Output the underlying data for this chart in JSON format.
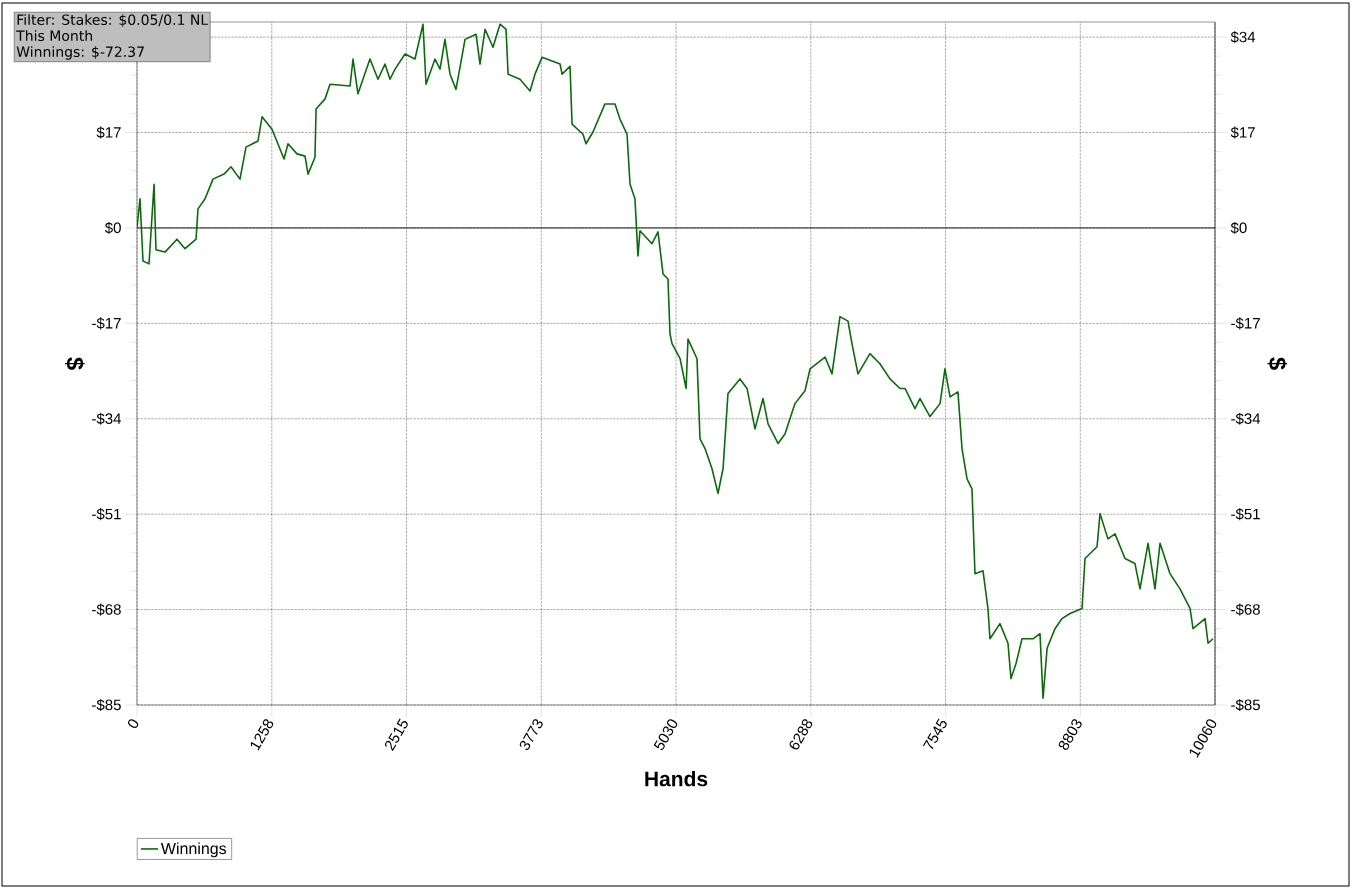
{
  "chart_data": {
    "type": "line",
    "xlabel": "Hands",
    "ylabel": "$",
    "y2label": "$",
    "annotations": [
      "Filter: Stakes: $0.05/0.1 NL",
      "This Month",
      "Winnings: $-72.37"
    ],
    "xlim": [
      0,
      10060
    ],
    "xticks": [
      0,
      1258,
      2515,
      3773,
      5030,
      6288,
      7545,
      8803,
      10060
    ],
    "ylim": [
      -85,
      36.7
    ],
    "yticks": [
      {
        "value": -85,
        "label": "-$85"
      },
      {
        "value": -68,
        "label": "-$68"
      },
      {
        "value": -51,
        "label": "-$51"
      },
      {
        "value": -34,
        "label": "-$34"
      },
      {
        "value": -17,
        "label": "-$17"
      },
      {
        "value": 0,
        "label": "$0"
      },
      {
        "value": 17,
        "label": "$17"
      },
      {
        "value": 34,
        "label": null
      }
    ],
    "y2lim": [
      -85,
      36.7
    ],
    "y2ticks": [
      {
        "value": -85,
        "label": "-$85"
      },
      {
        "value": -68,
        "label": "-$68"
      },
      {
        "value": -51,
        "label": "-$51"
      },
      {
        "value": -34,
        "label": "-$34"
      },
      {
        "value": -17,
        "label": "-$17"
      },
      {
        "value": 0,
        "label": "$0"
      },
      {
        "value": 17,
        "label": "$17"
      },
      {
        "value": 34,
        "label": "$34"
      }
    ],
    "grid": true,
    "legend": "bottom left",
    "ref_lines": [
      {
        "axis": "y",
        "value": 0,
        "color": "#000000"
      }
    ],
    "x": [
      0,
      28,
      56,
      112,
      159,
      177,
      261,
      373,
      448,
      551,
      569,
      635,
      709,
      812,
      877,
      961,
      1017,
      1129,
      1167,
      1260,
      1372,
      1409,
      1493,
      1568,
      1596,
      1661,
      1671,
      1755,
      1801,
      1988,
      2016,
      2062,
      2174,
      2249,
      2314,
      2361,
      2408,
      2501,
      2594,
      2669,
      2697,
      2781,
      2828,
      2874,
      2921,
      2977,
      3061,
      3164,
      3201,
      3248,
      3322,
      3388,
      3444,
      3463,
      3574,
      3668,
      3714,
      3780,
      3948,
      3967,
      4041,
      4060,
      4162,
      4190,
      4255,
      4367,
      4461,
      4507,
      4573,
      4601,
      4647,
      4675,
      4694,
      4806,
      4862,
      4909,
      4955,
      4974,
      4993,
      5068,
      5124,
      5142,
      5226,
      5254,
      5301,
      5366,
      5422,
      5469,
      5515,
      5627,
      5693,
      5767,
      5842,
      5889,
      5982,
      6047,
      6140,
      6234,
      6281,
      6421,
      6486,
      6560,
      6635,
      6672,
      6728,
      6840,
      6933,
      7027,
      7120,
      7167,
      7260,
      7307,
      7400,
      7494,
      7540,
      7587,
      7661,
      7699,
      7746,
      7792,
      7820,
      7895,
      7941,
      7960,
      8053,
      8128,
      8156,
      8203,
      8259,
      8362,
      8427,
      8455,
      8493,
      8567,
      8632,
      8707,
      8819,
      8847,
      8959,
      8987,
      9061,
      9127,
      9220,
      9313,
      9360,
      9435,
      9500,
      9547,
      9640,
      9733,
      9827,
      9855,
      9967,
      9995,
      10041
    ],
    "series": [
      {
        "name": "Winnings",
        "color": "#0b6b0b",
        "values": [
          0,
          5.2,
          -5.9,
          -6.4,
          7.8,
          -3.9,
          -4.3,
          -2,
          -3.7,
          -2,
          3.4,
          5.2,
          8.7,
          9.6,
          10.9,
          8.7,
          14.4,
          15.5,
          19.8,
          17.6,
          12.3,
          15,
          13.2,
          12.8,
          9.6,
          12.6,
          21.2,
          23,
          25.6,
          25.3,
          30.1,
          23.9,
          30.1,
          26.5,
          29.2,
          26.5,
          28.3,
          31,
          30.1,
          36.3,
          25.6,
          30.1,
          28.3,
          33.6,
          27.4,
          24.7,
          33.6,
          34.5,
          29.2,
          35.4,
          32.2,
          36.3,
          35.4,
          27.4,
          26.5,
          24.4,
          27.4,
          30.4,
          29.2,
          27.4,
          28.8,
          18.5,
          16.7,
          15,
          17.1,
          22.1,
          22.1,
          19.4,
          16.7,
          7.8,
          5.2,
          -5,
          -0.5,
          -2.8,
          -0.7,
          -8.2,
          -9.1,
          -18.9,
          -20.6,
          -23.3,
          -28.6,
          -19.8,
          -23.3,
          -37.6,
          -39.3,
          -42.9,
          -47.3,
          -42.9,
          -29.5,
          -26.9,
          -28.6,
          -35.8,
          -30.4,
          -34.9,
          -38.4,
          -36.7,
          -31.3,
          -29,
          -25.1,
          -23,
          -26,
          -15.8,
          -16.6,
          -20.6,
          -26,
          -22.4,
          -24.2,
          -26.9,
          -28.6,
          -28.6,
          -32.2,
          -30.4,
          -33.6,
          -31.3,
          -25.1,
          -30.1,
          -29.2,
          -39.3,
          -44.7,
          -46.5,
          -61.6,
          -61.1,
          -67.8,
          -73.2,
          -70.5,
          -74,
          -80.3,
          -77.6,
          -73.2,
          -73.2,
          -72.3,
          -83.8,
          -74.9,
          -71.4,
          -69.6,
          -68.7,
          -67.8,
          -58.9,
          -56.8,
          -50.9,
          -55.4,
          -54.5,
          -58.9,
          -59.8,
          -64.3,
          -56.2,
          -64.3,
          -56.2,
          -61.6,
          -64.3,
          -67.8,
          -71.4,
          -69.6,
          -74,
          -73.2
        ]
      }
    ]
  }
}
